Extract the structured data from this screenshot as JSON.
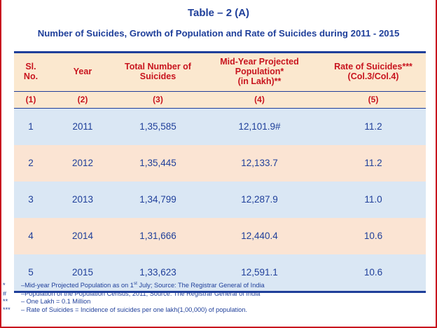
{
  "title": {
    "table_label": "Table – 2 (A)",
    "main": "Number of Suicides, Growth of Population and Rate of Suicides during 2011 - 2015"
  },
  "columns": [
    {
      "line1": "Sl.",
      "line2": "No.",
      "line3": ""
    },
    {
      "line1": "Year",
      "line2": "",
      "line3": ""
    },
    {
      "line1": "Total Number of",
      "line2": "Suicides",
      "line3": ""
    },
    {
      "line1": "Mid-Year Projected",
      "line2": "Population*",
      "line3": "(in Lakh)**"
    },
    {
      "line1": "Rate of Suicides***",
      "line2": "(Col.3/Col.4)",
      "line3": ""
    }
  ],
  "column_numbers": [
    "(1)",
    "(2)",
    "(3)",
    "(4)",
    "(5)"
  ],
  "rows": [
    {
      "sl": "1",
      "year": "2011",
      "suicides": "1,35,585",
      "population": "12,101.9#",
      "rate": "11.2"
    },
    {
      "sl": "2",
      "year": "2012",
      "suicides": "1,35,445",
      "population": "12,133.7",
      "rate": "11.2"
    },
    {
      "sl": "3",
      "year": "2013",
      "suicides": "1,34,799",
      "population": "12,287.9",
      "rate": "11.0"
    },
    {
      "sl": "4",
      "year": "2014",
      "suicides": "1,31,666",
      "population": "12,440.4",
      "rate": "10.6"
    },
    {
      "sl": "5",
      "year": "2015",
      "suicides": "1,33,623",
      "population": "12,591.1",
      "rate": "10.6"
    }
  ],
  "footnotes": [
    {
      "mark": "*",
      "pre": "–Mid-year Projected Population as on 1",
      "sup": "st",
      "post": " July; Source: The Registrar General of India"
    },
    {
      "mark": "#",
      "pre": "–Population of the Population Census, 2011; Source: The Registrar General of India",
      "sup": "",
      "post": ""
    },
    {
      "mark": "**",
      "pre": "– One Lakh = 0.1 Million",
      "sup": "",
      "post": ""
    },
    {
      "mark": "***",
      "pre": "– Rate of Suicides = Incidence of suicides per one lakh(1,00,000) of population.",
      "sup": "",
      "post": ""
    }
  ],
  "colors": {
    "heading": "#1f3f9a",
    "header_text": "#c8141e",
    "header_bg": "#fbe8cf",
    "row_blue": "#dae7f4",
    "row_peach": "#fbe4d3",
    "frame": "#c8141e"
  }
}
